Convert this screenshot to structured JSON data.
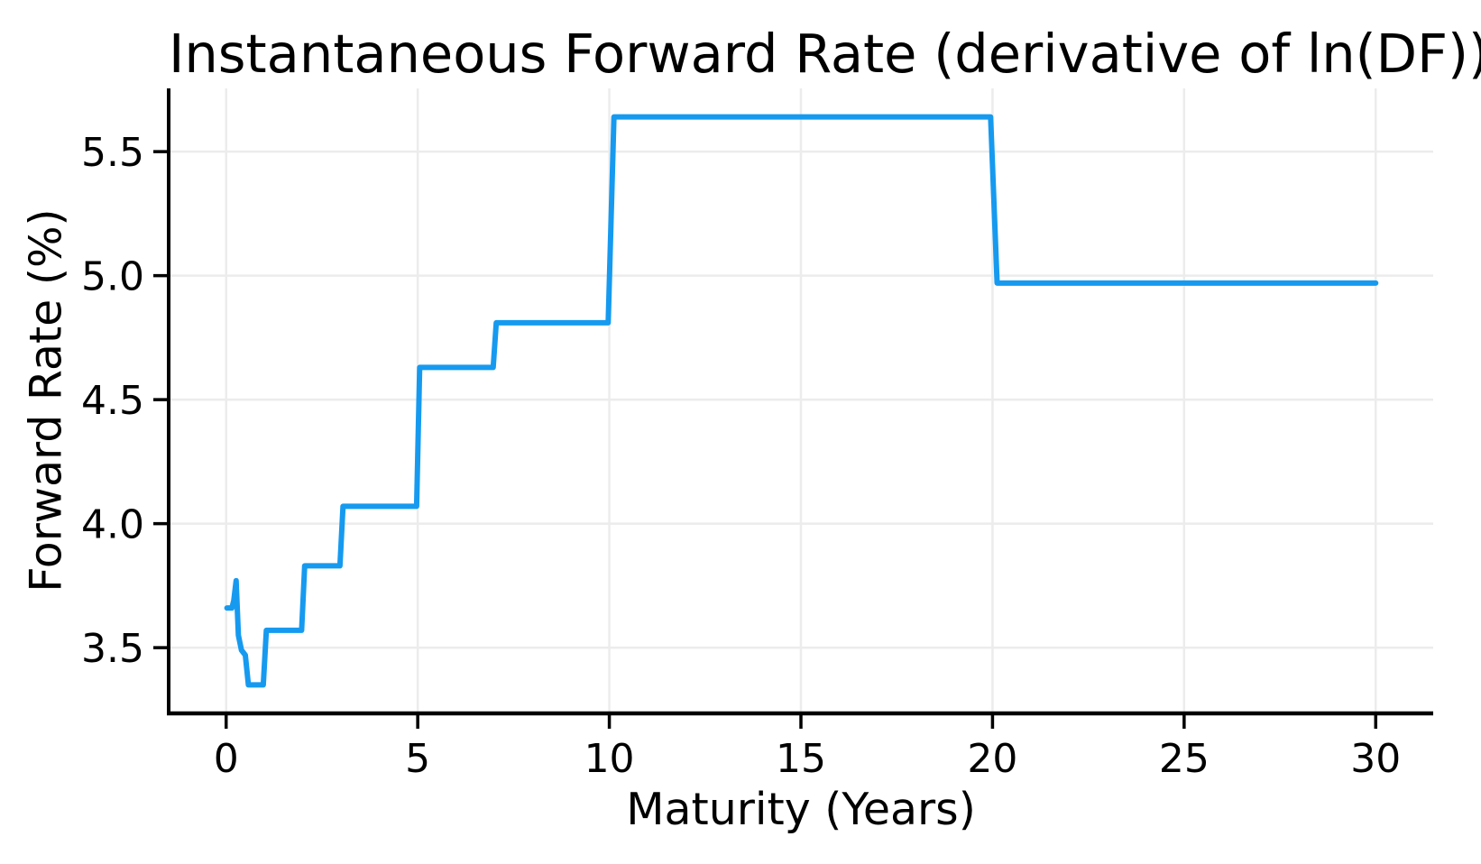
{
  "chart_data": {
    "type": "line",
    "title": "Instantaneous Forward Rate (derivative of ln(DF))",
    "xlabel": "Maturity (Years)",
    "ylabel": "Forward Rate (%)",
    "xlim": [
      -1.5,
      31.5
    ],
    "ylim": [
      3.235,
      5.755
    ],
    "xticks": [
      0,
      5,
      10,
      15,
      20,
      25,
      30
    ],
    "xtick_labels": [
      "0",
      "5",
      "10",
      "15",
      "20",
      "25",
      "30"
    ],
    "yticks": [
      3.5,
      4.0,
      4.5,
      5.0,
      5.5
    ],
    "ytick_labels": [
      "3.5",
      "4.0",
      "4.5",
      "5.0",
      "5.5"
    ],
    "grid": true,
    "legend_position": "none",
    "line_color": "#169af0",
    "grid_color": "#ececec",
    "axis_color": "#000000",
    "line_width": 6,
    "series": [
      {
        "name": "Instantaneous Forward Rate",
        "points": [
          [
            0.02,
            3.66
          ],
          [
            0.15,
            3.66
          ],
          [
            0.2,
            3.69
          ],
          [
            0.26,
            3.77
          ],
          [
            0.32,
            3.55
          ],
          [
            0.4,
            3.49
          ],
          [
            0.5,
            3.47
          ],
          [
            0.58,
            3.35
          ],
          [
            0.97,
            3.35
          ],
          [
            1.05,
            3.57
          ],
          [
            1.97,
            3.57
          ],
          [
            2.05,
            3.83
          ],
          [
            2.97,
            3.83
          ],
          [
            3.05,
            4.07
          ],
          [
            4.97,
            4.07
          ],
          [
            5.05,
            4.63
          ],
          [
            6.97,
            4.63
          ],
          [
            7.05,
            4.81
          ],
          [
            9.97,
            4.81
          ],
          [
            10.12,
            5.64
          ],
          [
            19.95,
            5.64
          ],
          [
            20.12,
            4.97
          ],
          [
            30.0,
            4.97
          ]
        ]
      }
    ]
  }
}
